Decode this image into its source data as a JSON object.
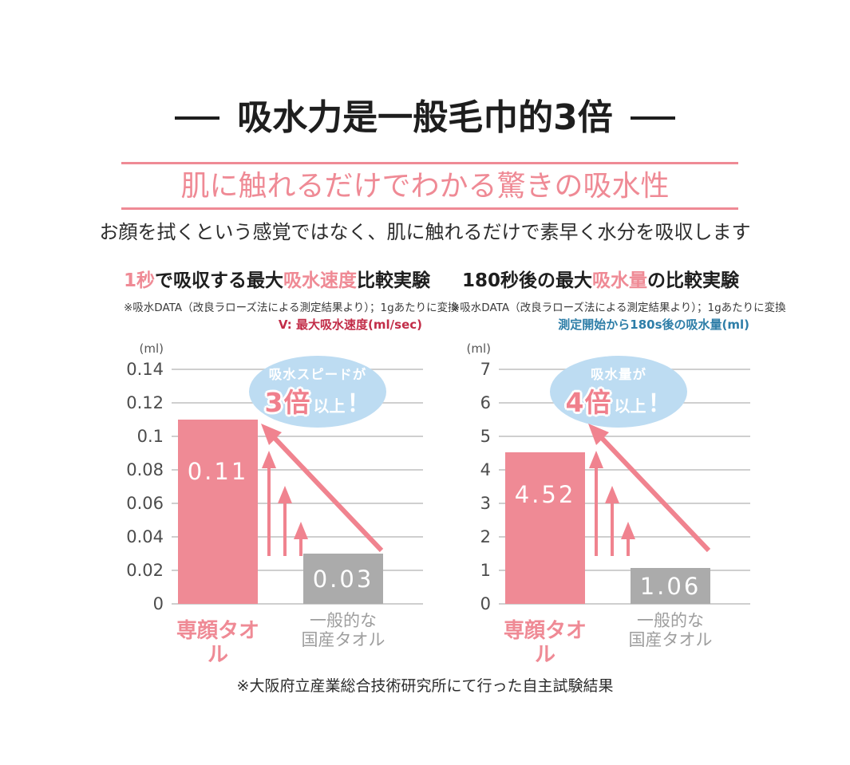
{
  "page": {
    "main_title": "吸水力是一般毛巾的3倍",
    "banner": "肌に触れるだけでわかる驚きの吸水性",
    "subtitle": "お顔を拭くという感覚ではなく、肌に触れるだけで素早く水分を吸収します",
    "footnote": "※大阪府立産業総合技術研究所にて行った自主試験結果"
  },
  "colors": {
    "pink": "#ef8a95",
    "gray_bar": "#ababab",
    "bubble_blue": "#bddcf2",
    "crimson_note": "#c22d48",
    "blue_note": "#2e7ea8",
    "gridline": "#cfcfcf"
  },
  "chart_data": [
    {
      "type": "bar",
      "title": "1秒で吸収する最大吸水速度比較実験",
      "title_segments": [
        {
          "text": "1秒",
          "pink": true
        },
        {
          "text": "で吸収する最大",
          "pink": false
        },
        {
          "text": "吸水速度",
          "pink": true
        },
        {
          "text": "比較実験",
          "pink": false
        }
      ],
      "note": "※吸水DATA（改良ラローズ法による測定結果より）；1gあたりに変換",
      "axis_note": "V: 最大吸水速度(ml/sec)",
      "unit_label": "(ml)",
      "categories": [
        "専顔タオル",
        "一般的な国産タオル"
      ],
      "category_lines": [
        [
          "専顔タオル"
        ],
        [
          "一般的な",
          "国産タオル"
        ]
      ],
      "values": [
        0.11,
        0.03
      ],
      "bar_labels": [
        "0.11",
        "0.03"
      ],
      "ylim": [
        0,
        0.14
      ],
      "ytick_values": [
        0.14,
        0.12,
        0.1,
        0.08,
        0.06,
        0.04,
        0.02,
        0
      ],
      "ytick_labels": [
        "0.14",
        "0.12",
        "0.1",
        "0.08",
        "0.06",
        "0.04",
        "0.02",
        "0"
      ],
      "grid": true,
      "bubble": {
        "line1": "吸水スピードが",
        "emph": "3倍",
        "rest": "以上",
        "bang": "！"
      }
    },
    {
      "type": "bar",
      "title": "180秒後の最大吸水量の比較実験",
      "title_segments": [
        {
          "text": "180秒後の最大",
          "pink": false
        },
        {
          "text": "吸水量",
          "pink": true
        },
        {
          "text": "の比較実験",
          "pink": false
        }
      ],
      "note": "※吸水DATA（改良ラローズ法による測定結果より）；1gあたりに変換",
      "axis_note": "測定開始から180s後の吸水量(ml)",
      "unit_label": "(ml)",
      "categories": [
        "専顔タオル",
        "一般的な国産タオル"
      ],
      "category_lines": [
        [
          "専顔タオル"
        ],
        [
          "一般的な",
          "国産タオル"
        ]
      ],
      "values": [
        4.52,
        1.06
      ],
      "bar_labels": [
        "4.52",
        "1.06"
      ],
      "ylim": [
        0,
        7
      ],
      "ytick_values": [
        7,
        6,
        5,
        4,
        3,
        2,
        1,
        0
      ],
      "ytick_labels": [
        "7",
        "6",
        "5",
        "4",
        "3",
        "2",
        "1",
        "0"
      ],
      "grid": true,
      "bubble": {
        "line1": "吸水量が",
        "emph": "4倍",
        "rest": "以上",
        "bang": "！"
      }
    }
  ]
}
